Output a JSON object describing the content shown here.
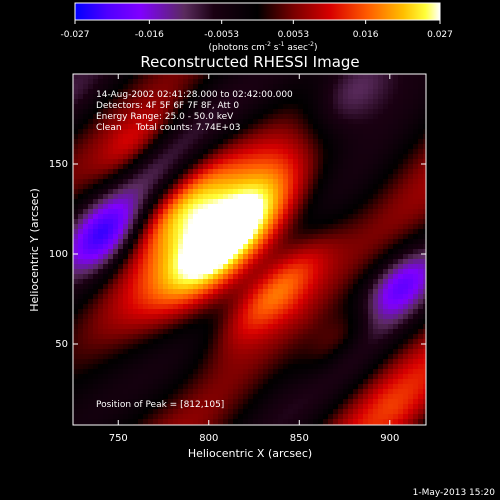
{
  "chart_data": {
    "type": "heatmap",
    "title": "Reconstructed RHESSI Image",
    "xlabel": "Heliocentric X (arcsec)",
    "ylabel": "Heliocentric Y (arcsec)",
    "xlim": [
      725,
      920
    ],
    "ylim": [
      5,
      200
    ],
    "x_ticks": [
      750,
      800,
      850,
      900
    ],
    "y_ticks": [
      50,
      100,
      150
    ],
    "colorbar": {
      "min": -0.027,
      "max": 0.027,
      "ticks": [
        "-0.027",
        "-0.016",
        "-0.0053",
        "0.0053",
        "0.016",
        "0.027"
      ],
      "label": "(photons cm<sup>-2</sup> s<sup>-1</sup> asec<sup>-2</sup>)",
      "colors": [
        "#0000ff",
        "#5000ff",
        "#8000ff",
        "#5a2b5d",
        "#1a0012",
        "#000000",
        "#7a0000",
        "#d80000",
        "#ff5a00",
        "#ffbf00",
        "#ffff3a",
        "#ffffff"
      ]
    },
    "annotations": {
      "time_range": "14-Aug-2002 02:41:28.000 to 02:42:00.000",
      "detectors": "Detectors: 4F 5F 6F 7F 8F, Att 0",
      "energy": "Energy Range: 25.0 - 50.0 keV",
      "clean": "Clean     Total counts: 7.74E+03",
      "peak": "Position of Peak = [812,105]"
    },
    "peak": {
      "x": 812,
      "y": 105
    },
    "footer": "1-May-2013 15:20"
  }
}
